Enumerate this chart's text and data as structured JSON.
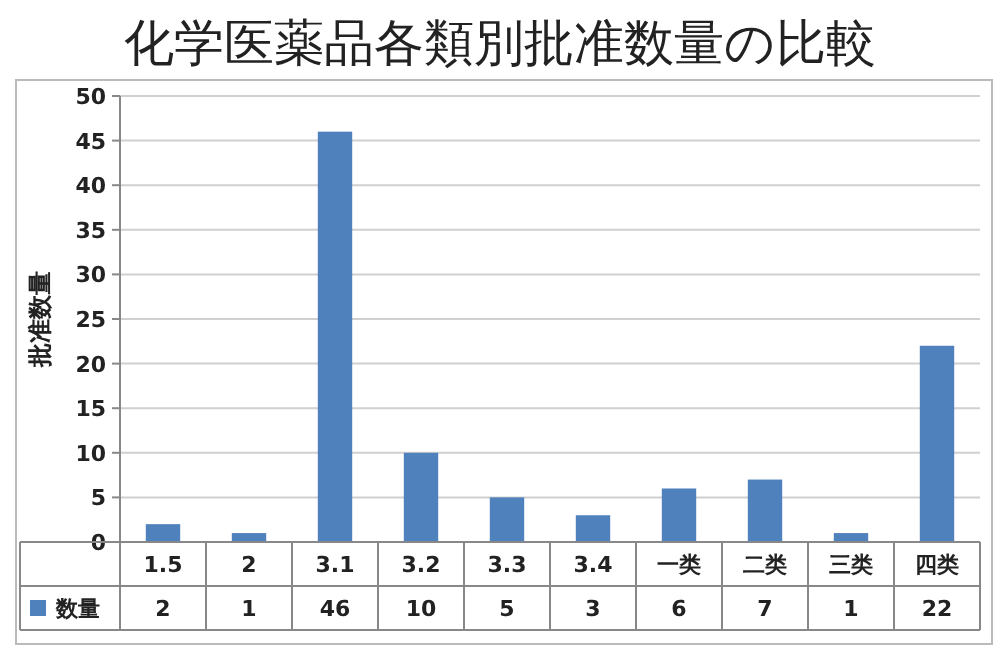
{
  "chart_data": {
    "type": "bar",
    "title": "化学医薬品各類別批准数量の比較",
    "ylabel": "批准数量",
    "categories": [
      "1.5",
      "2",
      "3.1",
      "3.2",
      "3.3",
      "3.4",
      "一类",
      "二类",
      "三类",
      "四类"
    ],
    "series": [
      {
        "name": "数量",
        "color": "#4f81bd",
        "values": [
          2,
          1,
          46,
          10,
          5,
          3,
          6,
          7,
          1,
          22
        ]
      }
    ],
    "ylim": [
      0,
      50
    ],
    "yticks": [
      0,
      5,
      10,
      15,
      20,
      25,
      30,
      35,
      40,
      45,
      50
    ],
    "grid": "y",
    "data_labels": true,
    "legend": "bottom"
  }
}
